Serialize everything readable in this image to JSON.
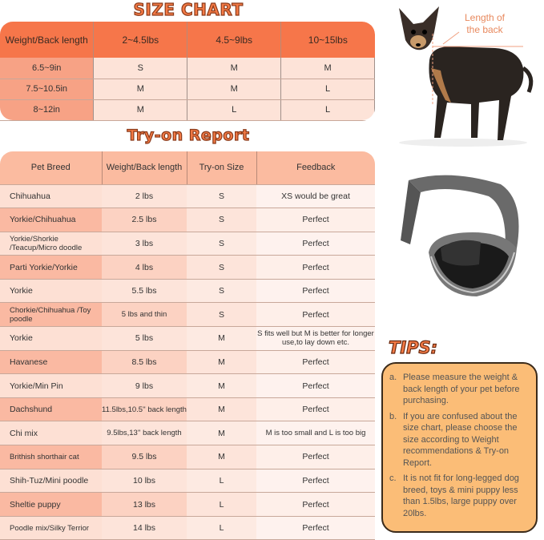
{
  "size_chart": {
    "title": "SIZE CHART",
    "headers": [
      "Weight/Back length",
      "2~4.5lbs",
      "4.5~9lbs",
      "10~15lbs"
    ],
    "rows": [
      [
        "6.5~9in",
        "S",
        "M",
        "M"
      ],
      [
        "7.5~10.5in",
        "M",
        "M",
        "L"
      ],
      [
        "8~12in",
        "M",
        "L",
        "L"
      ]
    ]
  },
  "try_on": {
    "title": "Try-on Report",
    "headers": [
      "Pet Breed",
      "Weight/Back length",
      "Try-on Size",
      "Feedback"
    ],
    "rows": [
      [
        "Chihuahua",
        "2 lbs",
        "S",
        "XS would be great"
      ],
      [
        "Yorkie/Chihuahua",
        "2.5 lbs",
        "S",
        "Perfect"
      ],
      [
        "Yorkie/Shorkie /Teacup/Micro doodle",
        "3 lbs",
        "S",
        "Perfect"
      ],
      [
        "Parti Yorkie/Yorkie",
        "4 lbs",
        "S",
        "Perfect"
      ],
      [
        "Yorkie",
        "5.5 lbs",
        "S",
        "Perfect"
      ],
      [
        "Chorkie/Chihuahua /Toy poodle",
        "5 lbs and thin",
        "S",
        "Perfect"
      ],
      [
        "Yorkie",
        "5 lbs",
        "M",
        "S fits well but M is better for longer use,to lay down etc."
      ],
      [
        "Havanese",
        "8.5 lbs",
        "M",
        "Perfect"
      ],
      [
        "Yorkie/Min Pin",
        "9 lbs",
        "M",
        "Perfect"
      ],
      [
        "Dachshund",
        "11.5lbs,10.5'' back length",
        "M",
        "Perfect"
      ],
      [
        "Chi mix",
        "9.5lbs,13'' back length",
        "M",
        "M is too small and L is too big"
      ],
      [
        "Brithish shorthair cat",
        "9.5 lbs",
        "M",
        "Perfect"
      ],
      [
        "Shih-Tuz/Mini poodle",
        "10 lbs",
        "L",
        "Perfect"
      ],
      [
        "Sheltie puppy",
        "13 lbs",
        "L",
        "Perfect"
      ],
      [
        "Poodle mix/Silky Terrior",
        "14 lbs",
        "L",
        "Perfect"
      ]
    ]
  },
  "dog_image": {
    "label": "Length of the back"
  },
  "tips": {
    "title": "TIPS:",
    "items": [
      {
        "key": "a.",
        "text": "Please measure the weight & back length of your pet before purchasing."
      },
      {
        "key": "b.",
        "text": "If you are confused about the size chart, please choose the size according to Weight recommendations & Try-on Report."
      },
      {
        "key": "c.",
        "text": "It is not fit for long-legged dog breed, toys & mini puppy less than 1.5lbs, large puppy over 20lbs."
      }
    ]
  },
  "colors": {
    "accent": "#f6764a",
    "tips_bg": "#fbbd77",
    "label": "#e8895e"
  }
}
